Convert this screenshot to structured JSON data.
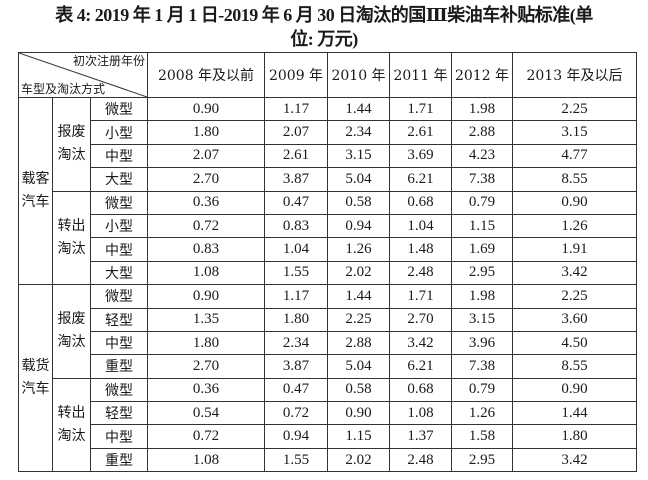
{
  "title_line1": "表 4: 2019 年 1 月 1 日-2019 年 6 月 30 日淘汰的国Ⅲ柴油车补贴标准(单",
  "title_line2": "位: 万元)",
  "header": {
    "corner_top": "初次注册年份",
    "corner_bottom": "车型及淘汰方式",
    "columns": [
      "2008 年及以前",
      "2009 年",
      "2010 年",
      "2011 年",
      "2012 年",
      "2013 年及以后"
    ]
  },
  "groups": [
    {
      "category": "载客\n汽车",
      "methods": [
        {
          "method": "报废\n淘汰",
          "rows": [
            {
              "type": "微型",
              "values": [
                "0.90",
                "1.17",
                "1.44",
                "1.71",
                "1.98",
                "2.25"
              ]
            },
            {
              "type": "小型",
              "values": [
                "1.80",
                "2.07",
                "2.34",
                "2.61",
                "2.88",
                "3.15"
              ]
            },
            {
              "type": "中型",
              "values": [
                "2.07",
                "2.61",
                "3.15",
                "3.69",
                "4.23",
                "4.77"
              ]
            },
            {
              "type": "大型",
              "values": [
                "2.70",
                "3.87",
                "5.04",
                "6.21",
                "7.38",
                "8.55"
              ]
            }
          ]
        },
        {
          "method": "转出\n淘汰",
          "rows": [
            {
              "type": "微型",
              "values": [
                "0.36",
                "0.47",
                "0.58",
                "0.68",
                "0.79",
                "0.90"
              ]
            },
            {
              "type": "小型",
              "values": [
                "0.72",
                "0.83",
                "0.94",
                "1.04",
                "1.15",
                "1.26"
              ]
            },
            {
              "type": "中型",
              "values": [
                "0.83",
                "1.04",
                "1.26",
                "1.48",
                "1.69",
                "1.91"
              ]
            },
            {
              "type": "大型",
              "values": [
                "1.08",
                "1.55",
                "2.02",
                "2.48",
                "2.95",
                "3.42"
              ]
            }
          ]
        }
      ]
    },
    {
      "category": "载货\n汽车",
      "methods": [
        {
          "method": "报废\n淘汰",
          "rows": [
            {
              "type": "微型",
              "values": [
                "0.90",
                "1.17",
                "1.44",
                "1.71",
                "1.98",
                "2.25"
              ]
            },
            {
              "type": "轻型",
              "values": [
                "1.35",
                "1.80",
                "2.25",
                "2.70",
                "3.15",
                "3.60"
              ]
            },
            {
              "type": "中型",
              "values": [
                "1.80",
                "2.34",
                "2.88",
                "3.42",
                "3.96",
                "4.50"
              ]
            },
            {
              "type": "重型",
              "values": [
                "2.70",
                "3.87",
                "5.04",
                "6.21",
                "7.38",
                "8.55"
              ]
            }
          ]
        },
        {
          "method": "转出\n淘汰",
          "rows": [
            {
              "type": "微型",
              "values": [
                "0.36",
                "0.47",
                "0.58",
                "0.68",
                "0.79",
                "0.90"
              ]
            },
            {
              "type": "轻型",
              "values": [
                "0.54",
                "0.72",
                "0.90",
                "1.08",
                "1.26",
                "1.44"
              ]
            },
            {
              "type": "中型",
              "values": [
                "0.72",
                "0.94",
                "1.15",
                "1.37",
                "1.58",
                "1.80"
              ]
            },
            {
              "type": "重型",
              "values": [
                "1.08",
                "1.55",
                "2.02",
                "2.48",
                "2.95",
                "3.42"
              ]
            }
          ]
        }
      ]
    }
  ]
}
